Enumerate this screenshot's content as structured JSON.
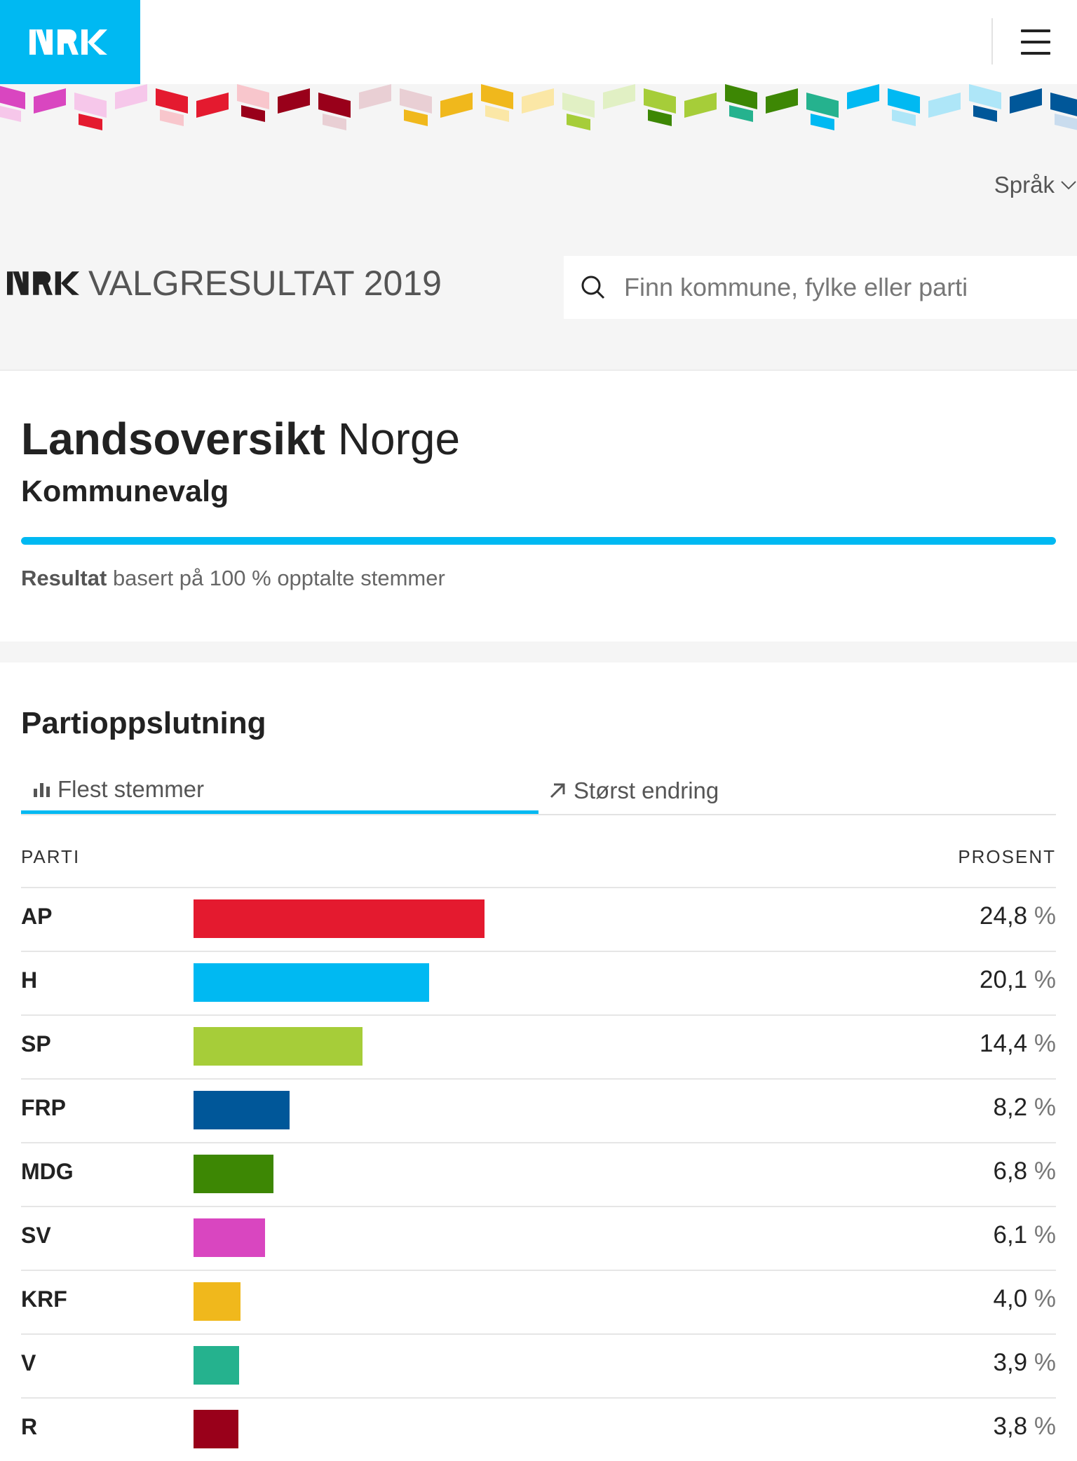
{
  "header": {
    "language_label": "Språk",
    "site_title": "VALGRESULTAT 2019",
    "search_placeholder": "Finn kommune, fylke eller parti"
  },
  "overview": {
    "title_bold": "Landsoversikt",
    "title_rest": "Norge",
    "subtitle": "Kommunevalg",
    "progress_percent": 100,
    "result_label": "Resultat",
    "result_text": "basert på 100 % opptalte stemmer"
  },
  "results": {
    "section_title": "Partioppslutning",
    "tabs": [
      {
        "label": "Flest stemmer",
        "icon": "bar-chart-icon",
        "active": true
      },
      {
        "label": "Størst endring",
        "icon": "arrow-up-right-icon",
        "active": false
      }
    ],
    "columns": {
      "party": "PARTI",
      "percent": "PROSENT"
    },
    "percent_unit": "%",
    "parties": [
      {
        "name": "AP",
        "percent": "24,8",
        "value": 24.8,
        "color": "#e41a2f"
      },
      {
        "name": "H",
        "percent": "20,1",
        "value": 20.1,
        "color": "#00b9f2"
      },
      {
        "name": "SP",
        "percent": "14,4",
        "value": 14.4,
        "color": "#a6cd39"
      },
      {
        "name": "FRP",
        "percent": "8,2",
        "value": 8.2,
        "color": "#005799"
      },
      {
        "name": "MDG",
        "percent": "6,8",
        "value": 6.8,
        "color": "#3d8704"
      },
      {
        "name": "SV",
        "percent": "6,1",
        "value": 6.1,
        "color": "#d946c0"
      },
      {
        "name": "KRF",
        "percent": "4,0",
        "value": 4.0,
        "color": "#f0b81c"
      },
      {
        "name": "V",
        "percent": "3,9",
        "value": 3.9,
        "color": "#25b28e"
      },
      {
        "name": "R",
        "percent": "3,8",
        "value": 3.8,
        "color": "#99001a"
      }
    ]
  },
  "banner_colors": [
    "#d946c0",
    "#f6c7ea",
    "#e41a2f",
    "#f8c6cc",
    "#99001a",
    "#e9cfd4",
    "#f0b81c",
    "#fbe7a6",
    "#e1f0c4",
    "#a6cd39",
    "#3d8704",
    "#25b28e",
    "#00b9f2",
    "#aee6f8",
    "#005799",
    "#c9dcee"
  ]
}
